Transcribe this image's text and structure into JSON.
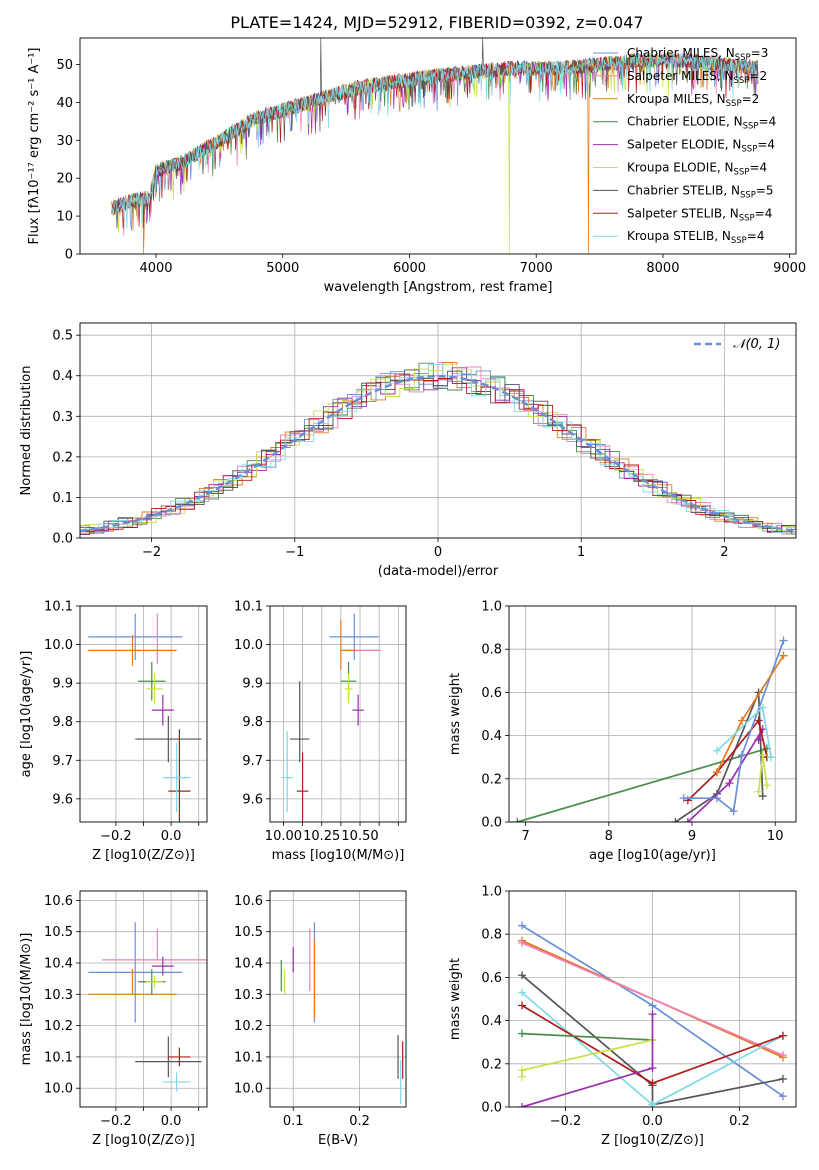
{
  "figure_title": "PLATE=1424, MJD=52912, FIBERID=0392, z=0.047",
  "colors": [
    "#6a8fd8",
    "#ef7fb5",
    "#e07a1f",
    "#4a8a4a",
    "#9b2fae",
    "#c8e04a",
    "#555555",
    "#b01a1a",
    "#7fd9e6"
  ],
  "chart_data": [
    {
      "type": "line",
      "name": "spectrum",
      "xlabel": "wavelength [Angstrom, rest frame]",
      "ylabel": "Flux [fλ10⁻¹⁷ erg cm⁻² s⁻¹ A⁻¹]",
      "xlim": [
        3400,
        9050
      ],
      "ylim": [
        0,
        57
      ],
      "xticks": [
        4000,
        5000,
        6000,
        7000,
        8000,
        9000
      ],
      "yticks": [
        0,
        10,
        20,
        30,
        40,
        50
      ],
      "grid": false,
      "legend_position": "right",
      "x_range": [
        3650,
        8750
      ],
      "continuum": [
        [
          3650,
          12
        ],
        [
          3800,
          14
        ],
        [
          3950,
          15
        ],
        [
          4000,
          22
        ],
        [
          4200,
          24
        ],
        [
          4400,
          28
        ],
        [
          4600,
          32
        ],
        [
          4800,
          36
        ],
        [
          5000,
          38
        ],
        [
          5200,
          40
        ],
        [
          5400,
          42
        ],
        [
          5600,
          44
        ],
        [
          5800,
          45
        ],
        [
          6000,
          46
        ],
        [
          6200,
          47
        ],
        [
          6500,
          48
        ],
        [
          6800,
          49
        ],
        [
          7000,
          49
        ],
        [
          7200,
          49
        ],
        [
          7500,
          50
        ],
        [
          7800,
          51
        ],
        [
          8000,
          51
        ],
        [
          8200,
          51
        ],
        [
          8500,
          50
        ],
        [
          8750,
          49
        ]
      ],
      "dips": [
        [
          3900,
          0
        ],
        [
          6790,
          0
        ],
        [
          7410,
          0
        ]
      ],
      "spikes": [
        [
          5300,
          57
        ],
        [
          6580,
          57
        ]
      ],
      "legend": [
        {
          "label": "Chabrier MILES, N",
          "sub": "SSP",
          "suffix": "=3"
        },
        {
          "label": "Salpeter MILES, N",
          "sub": "SSP",
          "suffix": "=2"
        },
        {
          "label": "Kroupa MILES, N",
          "sub": "SSP",
          "suffix": "=2"
        },
        {
          "label": "Chabrier ELODIE, N",
          "sub": "SSP",
          "suffix": "=4"
        },
        {
          "label": "Salpeter ELODIE, N",
          "sub": "SSP",
          "suffix": "=4"
        },
        {
          "label": "Kroupa ELODIE, N",
          "sub": "SSP",
          "suffix": "=4"
        },
        {
          "label": "Chabrier STELIB, N",
          "sub": "SSP",
          "suffix": "=5"
        },
        {
          "label": "Salpeter STELIB, N",
          "sub": "SSP",
          "suffix": "=4"
        },
        {
          "label": "Kroupa STELIB, N",
          "sub": "SSP",
          "suffix": "=4"
        }
      ]
    },
    {
      "type": "histogram",
      "name": "residuals",
      "xlabel": "(data-model)/error",
      "ylabel": "Normed distribution",
      "xlim": [
        -2.5,
        2.5
      ],
      "ylim": [
        0,
        0.53
      ],
      "xticks": [
        -2,
        -1,
        0,
        1,
        2
      ],
      "yticks": [
        0.0,
        0.1,
        0.2,
        0.3,
        0.4,
        0.5
      ],
      "grid": true,
      "legend": "𝒩(0, 1)",
      "legend_position": "top-right",
      "bin_width": 0.1
    },
    {
      "type": "errorbar",
      "name": "age_vs_Z",
      "xlabel": "Z [log10(Z/Z⊙)]",
      "ylabel": "age  [log10(age/yr)]",
      "xlim": [
        -0.33,
        0.13
      ],
      "ylim": [
        9.54,
        10.1
      ],
      "xticks": [
        -0.2,
        -0.1,
        0.0,
        0.1
      ],
      "xticklabels": [
        "−0.2",
        "",
        "0.0",
        ""
      ],
      "yticks": [
        9.6,
        9.7,
        9.8,
        9.9,
        10.0,
        10.1
      ],
      "grid": true,
      "points": [
        {
          "x": -0.13,
          "y": 10.02,
          "xerr": [
            0.17,
            0.17
          ],
          "yerr": [
            0.06,
            0.06
          ],
          "c": 0
        },
        {
          "x": -0.05,
          "y": 10.0,
          "xerr": [
            0,
            0
          ],
          "yerr": [
            0.05,
            0.08
          ],
          "c": 1
        },
        {
          "x": -0.14,
          "y": 9.985,
          "xerr": [
            0.16,
            0.16
          ],
          "yerr": [
            0.04,
            0.04
          ],
          "c": 2
        },
        {
          "x": -0.07,
          "y": 9.905,
          "xerr": [
            0.05,
            0.05
          ],
          "yerr": [
            0.05,
            0.05
          ],
          "c": 3
        },
        {
          "x": -0.03,
          "y": 9.83,
          "xerr": [
            0.04,
            0.04
          ],
          "yerr": [
            0.04,
            0.04
          ],
          "c": 4
        },
        {
          "x": -0.06,
          "y": 9.885,
          "xerr": [
            0.03,
            0.03
          ],
          "yerr": [
            0.04,
            0.04
          ],
          "c": 5
        },
        {
          "x": -0.01,
          "y": 9.755,
          "xerr": [
            0.12,
            0.12
          ],
          "yerr": [
            0.06,
            0.06
          ],
          "c": 6
        },
        {
          "x": 0.03,
          "y": 9.62,
          "xerr": [
            0.04,
            0.04
          ],
          "yerr": [
            0.16,
            0.16
          ],
          "c": 7
        },
        {
          "x": 0.02,
          "y": 9.655,
          "xerr": [
            0.05,
            0.05
          ],
          "yerr": [
            0.09,
            0.09
          ],
          "c": 8
        }
      ]
    },
    {
      "type": "errorbar",
      "name": "age_vs_mass",
      "xlabel": "mass [log10(M/M⊙)]",
      "ylabel": "",
      "xlim": [
        9.93,
        10.64
      ],
      "ylim": [
        9.54,
        10.1
      ],
      "xticks": [
        10.0,
        10.1,
        10.2,
        10.3,
        10.4,
        10.5,
        10.6
      ],
      "xticklabels": [
        "10.00",
        "",
        "10.25",
        "",
        "10.50",
        "",
        ""
      ],
      "yticks": [
        9.6,
        9.7,
        9.8,
        9.9,
        10.0,
        10.1
      ],
      "grid": true,
      "points": [
        {
          "x": 10.37,
          "y": 10.02,
          "xerr": [
            0.13,
            0.13
          ],
          "yerr": [
            0.06,
            0.06
          ],
          "c": 0
        },
        {
          "x": 10.41,
          "y": 9.985,
          "xerr": [
            0.1,
            0.1
          ],
          "yerr": [
            0,
            0
          ],
          "c": 1
        },
        {
          "x": 10.3,
          "y": 9.985,
          "xerr": [
            0.0,
            0.08
          ],
          "yerr": [
            0.05,
            0.08
          ],
          "c": 2
        },
        {
          "x": 10.34,
          "y": 9.905,
          "xerr": [
            0.04,
            0.04
          ],
          "yerr": [
            0.05,
            0.05
          ],
          "c": 3
        },
        {
          "x": 10.39,
          "y": 9.83,
          "xerr": [
            0.03,
            0.03
          ],
          "yerr": [
            0.04,
            0.04
          ],
          "c": 4
        },
        {
          "x": 10.34,
          "y": 9.885,
          "xerr": [
            0.02,
            0.02
          ],
          "yerr": [
            0.04,
            0.04
          ],
          "c": 5
        },
        {
          "x": 10.085,
          "y": 9.755,
          "xerr": [
            0.05,
            0.05
          ],
          "yerr": [
            0.06,
            0.15
          ],
          "c": 6
        },
        {
          "x": 10.1,
          "y": 9.62,
          "xerr": [
            0.03,
            0.03
          ],
          "yerr": [
            0.1,
            0.1
          ],
          "c": 7
        },
        {
          "x": 10.02,
          "y": 9.655,
          "xerr": [
            0.03,
            0.03
          ],
          "yerr": [
            0.09,
            0.12
          ],
          "c": 8
        }
      ]
    },
    {
      "type": "line",
      "name": "weight_vs_age",
      "xlabel": "age  [log10(age/yr)]",
      "ylabel": "mass weight",
      "xlim": [
        6.8,
        10.25
      ],
      "ylim": [
        0,
        1.0
      ],
      "xticks": [
        7,
        8,
        9,
        10
      ],
      "yticks": [
        0.0,
        0.2,
        0.4,
        0.6,
        0.8,
        1.0
      ],
      "grid": true,
      "series": [
        {
          "c": 3,
          "points": [
            [
              6.9,
              0.0
            ],
            [
              9.9,
              0.34
            ]
          ]
        },
        {
          "c": 6,
          "points": [
            [
              8.8,
              0.0
            ],
            [
              9.3,
              0.13
            ],
            [
              9.8,
              0.6
            ],
            [
              9.85,
              0.12
            ]
          ]
        },
        {
          "c": 4,
          "points": [
            [
              8.95,
              0.0
            ],
            [
              9.45,
              0.18
            ],
            [
              9.85,
              0.43
            ],
            [
              9.8,
              0.38
            ]
          ]
        },
        {
          "c": 7,
          "points": [
            [
              8.95,
              0.1
            ],
            [
              9.3,
              0.23
            ],
            [
              9.8,
              0.47
            ],
            [
              9.9,
              0.3
            ]
          ]
        },
        {
          "c": 0,
          "points": [
            [
              8.9,
              0.11
            ],
            [
              9.3,
              0.11
            ],
            [
              9.5,
              0.05
            ],
            [
              9.6,
              0.31
            ],
            [
              10.1,
              0.84
            ]
          ]
        },
        {
          "c": 2,
          "points": [
            [
              9.3,
              0.23
            ],
            [
              9.6,
              0.47
            ],
            [
              10.1,
              0.77
            ]
          ]
        },
        {
          "c": 8,
          "points": [
            [
              9.3,
              0.33
            ],
            [
              9.85,
              0.53
            ],
            [
              9.95,
              0.3
            ]
          ]
        },
        {
          "c": 5,
          "points": [
            [
              9.8,
              0.14
            ],
            [
              9.85,
              0.31
            ],
            [
              9.9,
              0.17
            ]
          ]
        }
      ]
    },
    {
      "type": "errorbar",
      "name": "mass_vs_Z",
      "xlabel": "Z [log10(Z/Z⊙)]",
      "ylabel": "mass [log10(M/M⊙)]",
      "xlim": [
        -0.33,
        0.13
      ],
      "ylim": [
        9.94,
        10.63
      ],
      "xticks": [
        -0.2,
        -0.1,
        0.0,
        0.1
      ],
      "xticklabels": [
        "−0.2",
        "",
        "0.0",
        ""
      ],
      "yticks": [
        10.0,
        10.1,
        10.2,
        10.3,
        10.4,
        10.5,
        10.6
      ],
      "grid": true,
      "points": [
        {
          "x": -0.13,
          "y": 10.37,
          "xerr": [
            0.17,
            0.17
          ],
          "yerr": [
            0.16,
            0.16
          ],
          "c": 0
        },
        {
          "x": -0.05,
          "y": 10.41,
          "xerr": [
            0.2,
            0.2
          ],
          "yerr": [
            0,
            0.1
          ],
          "c": 1
        },
        {
          "x": -0.14,
          "y": 10.3,
          "xerr": [
            0.16,
            0.16
          ],
          "yerr": [
            0,
            0.08
          ],
          "c": 2
        },
        {
          "x": -0.07,
          "y": 10.34,
          "xerr": [
            0.05,
            0.05
          ],
          "yerr": [
            0.04,
            0.04
          ],
          "c": 3
        },
        {
          "x": -0.03,
          "y": 10.39,
          "xerr": [
            0.04,
            0.04
          ],
          "yerr": [
            0.03,
            0.03
          ],
          "c": 4
        },
        {
          "x": -0.06,
          "y": 10.34,
          "xerr": [
            0.03,
            0.03
          ],
          "yerr": [
            0.02,
            0.02
          ],
          "c": 5
        },
        {
          "x": -0.01,
          "y": 10.085,
          "xerr": [
            0.12,
            0.12
          ],
          "yerr": [
            0.05,
            0.08
          ],
          "c": 6
        },
        {
          "x": 0.03,
          "y": 10.1,
          "xerr": [
            0.04,
            0.04
          ],
          "yerr": [
            0.03,
            0.03
          ],
          "c": 7
        },
        {
          "x": 0.02,
          "y": 10.02,
          "xerr": [
            0.05,
            0.05
          ],
          "yerr": [
            0.03,
            0.03
          ],
          "c": 8
        }
      ]
    },
    {
      "type": "errorbar",
      "name": "mass_vs_ebv",
      "xlabel": "E(B-V)",
      "ylabel": "",
      "xlim": [
        0.065,
        0.27
      ],
      "ylim": [
        9.94,
        10.63
      ],
      "xticks": [
        0.1,
        0.2
      ],
      "yticks": [
        10.0,
        10.1,
        10.2,
        10.3,
        10.4,
        10.5,
        10.6
      ],
      "grid": true,
      "points": [
        {
          "x": 0.132,
          "y": 10.37,
          "xerr": [
            0,
            0
          ],
          "yerr": [
            0.16,
            0.16
          ],
          "c": 0
        },
        {
          "x": 0.125,
          "y": 10.41,
          "xerr": [
            0,
            0
          ],
          "yerr": [
            0.1,
            0.1
          ],
          "c": 1
        },
        {
          "x": 0.132,
          "y": 10.3,
          "xerr": [
            0,
            0
          ],
          "yerr": [
            0.08,
            0.18
          ],
          "c": 2
        },
        {
          "x": 0.082,
          "y": 10.36,
          "xerr": [
            0,
            0
          ],
          "yerr": [
            0.05,
            0.05
          ],
          "c": 3
        },
        {
          "x": 0.1,
          "y": 10.41,
          "xerr": [
            0,
            0
          ],
          "yerr": [
            0.04,
            0.04
          ],
          "c": 4
        },
        {
          "x": 0.087,
          "y": 10.34,
          "xerr": [
            0,
            0
          ],
          "yerr": [
            0.04,
            0.04
          ],
          "c": 5
        },
        {
          "x": 0.258,
          "y": 10.08,
          "xerr": [
            0,
            0
          ],
          "yerr": [
            0.05,
            0.09
          ],
          "c": 6
        },
        {
          "x": 0.265,
          "y": 10.08,
          "xerr": [
            0,
            0
          ],
          "yerr": [
            0.05,
            0.07
          ],
          "c": 7
        },
        {
          "x": 0.262,
          "y": 10.02,
          "xerr": [
            0,
            0
          ],
          "yerr": [
            0.07,
            0.07
          ],
          "c": 8
        }
      ]
    },
    {
      "type": "line",
      "name": "weight_vs_Z",
      "xlabel": "Z [log10(Z/Z⊙)]",
      "ylabel": "mass weight",
      "xlim": [
        -0.33,
        0.33
      ],
      "ylim": [
        0,
        1.0
      ],
      "xticks": [
        -0.2,
        0.0,
        0.2
      ],
      "yticks": [
        0.0,
        0.2,
        0.4,
        0.6,
        0.8,
        1.0
      ],
      "grid": true,
      "series": [
        {
          "c": 0,
          "points": [
            [
              -0.3,
              0.84
            ],
            [
              0.0,
              0.47
            ],
            [
              0.3,
              0.05
            ]
          ]
        },
        {
          "c": 2,
          "points": [
            [
              -0.3,
              0.77
            ],
            [
              0.3,
              0.23
            ]
          ]
        },
        {
          "c": 1,
          "points": [
            [
              -0.3,
              0.76
            ],
            [
              0.3,
              0.24
            ]
          ]
        },
        {
          "c": 6,
          "points": [
            [
              -0.3,
              0.61
            ],
            [
              0.0,
              0.1
            ],
            [
              0.0,
              0.01
            ],
            [
              0.3,
              0.13
            ]
          ]
        },
        {
          "c": 8,
          "points": [
            [
              -0.3,
              0.53
            ],
            [
              0.0,
              0.01
            ],
            [
              0.3,
              0.33
            ]
          ]
        },
        {
          "c": 7,
          "points": [
            [
              -0.3,
              0.47
            ],
            [
              0.0,
              0.11
            ],
            [
              0.3,
              0.33
            ]
          ]
        },
        {
          "c": 3,
          "points": [
            [
              -0.3,
              0.34
            ],
            [
              0.0,
              0.31
            ]
          ]
        },
        {
          "c": 5,
          "points": [
            [
              -0.3,
              0.14
            ],
            [
              -0.3,
              0.17
            ],
            [
              0.0,
              0.31
            ]
          ]
        },
        {
          "c": 4,
          "points": [
            [
              -0.3,
              0.0
            ],
            [
              0.0,
              0.18
            ],
            [
              0.0,
              0.43
            ]
          ]
        }
      ]
    }
  ]
}
